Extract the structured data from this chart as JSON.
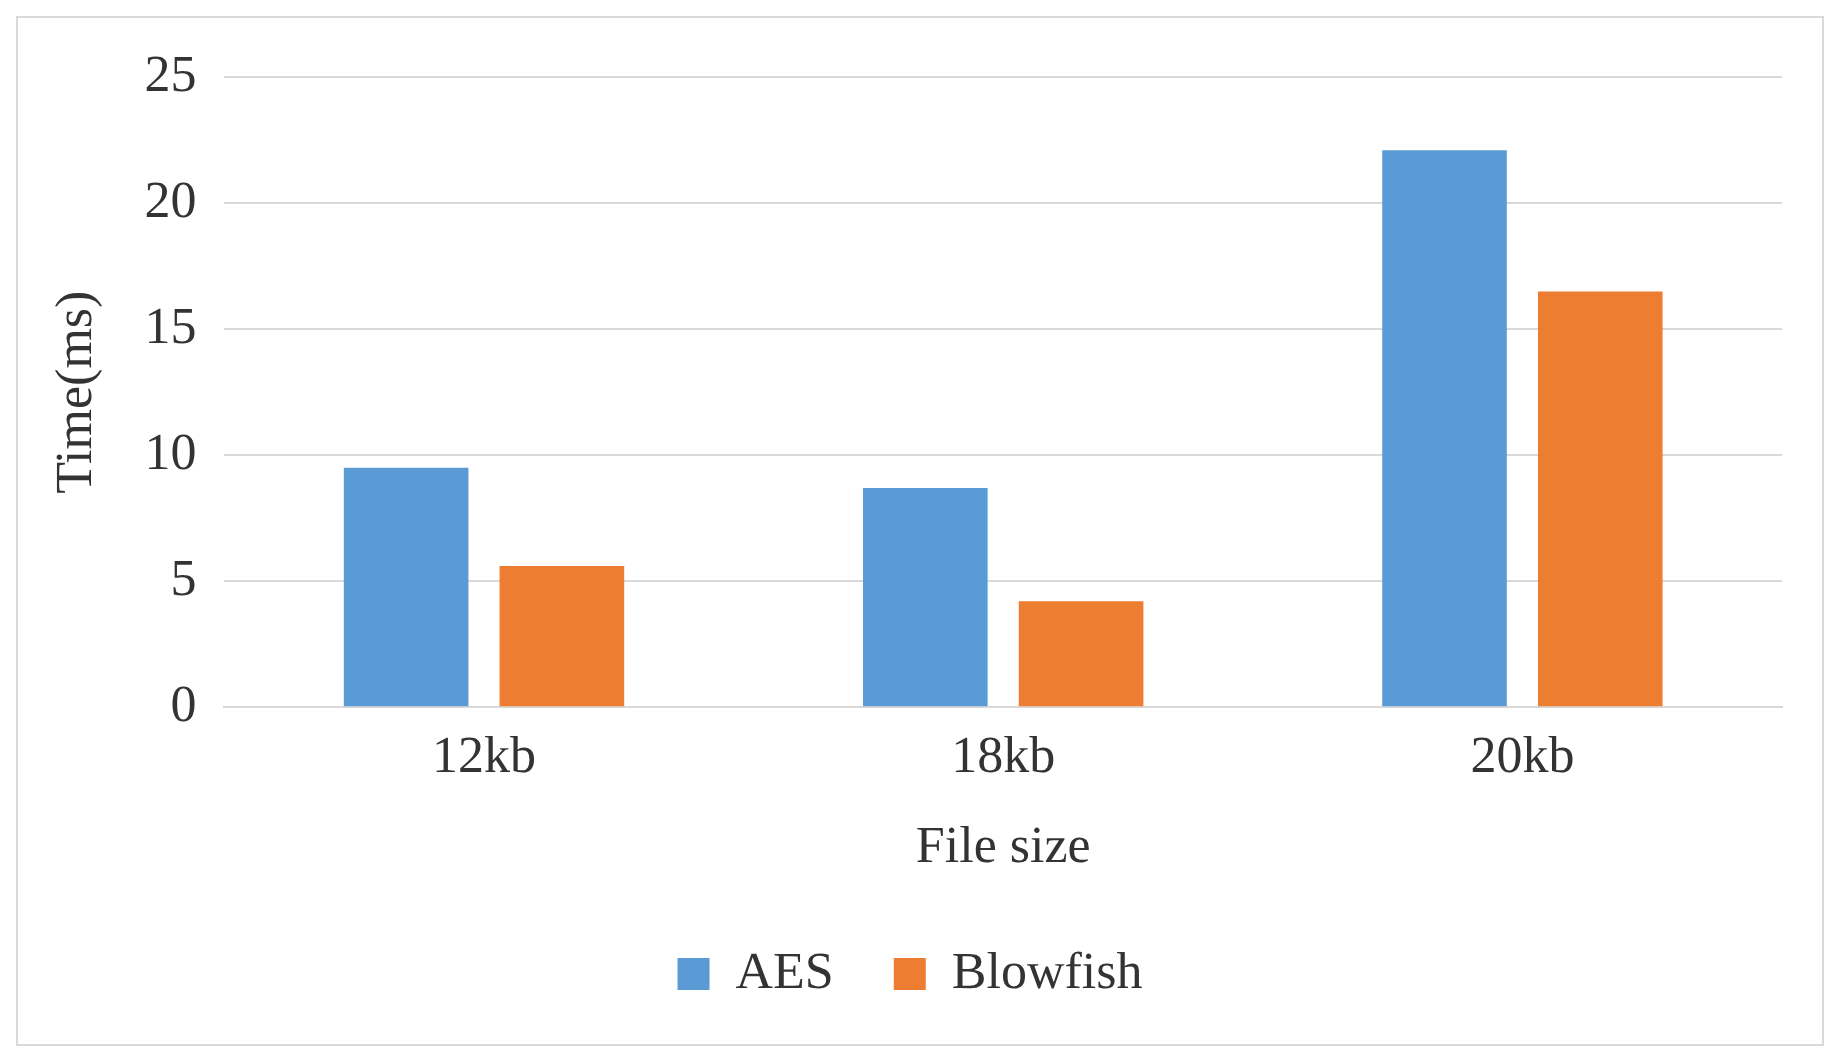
{
  "chart_data": {
    "type": "bar",
    "xlabel": "File size",
    "ylabel": "Time(ms)",
    "categories": [
      "12kb",
      "18kb",
      "20kb"
    ],
    "series": [
      {
        "name": "AES",
        "color": "#5b9bd5",
        "values": [
          9.5,
          8.7,
          22.1
        ]
      },
      {
        "name": "Blowfish",
        "color": "#ed7d31",
        "values": [
          5.6,
          4.2,
          16.5
        ]
      }
    ],
    "ylim": [
      0,
      25
    ],
    "yticks": [
      0,
      5,
      10,
      15,
      20,
      25
    ],
    "grid": "y",
    "legend": "bottom"
  }
}
